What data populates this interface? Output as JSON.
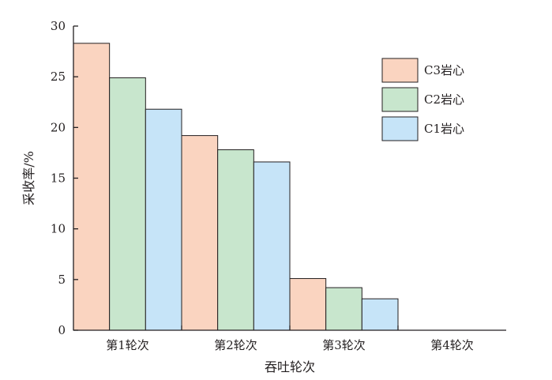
{
  "chart_data": {
    "type": "bar",
    "categories": [
      "第1轮次",
      "第2轮次",
      "第3轮次",
      "第4轮次"
    ],
    "series": [
      {
        "name": "C3岩心",
        "color": "#fad4c0",
        "values": [
          28.3,
          19.2,
          5.1,
          0
        ]
      },
      {
        "name": "C2岩心",
        "color": "#c8e6cd",
        "values": [
          24.9,
          17.8,
          4.2,
          0
        ]
      },
      {
        "name": "C1岩心",
        "color": "#c6e4f8",
        "values": [
          21.8,
          16.6,
          3.1,
          0
        ]
      }
    ],
    "xlabel": "吞吐轮次",
    "ylabel": "采收率/%",
    "ylim": [
      0,
      30
    ],
    "yticks": [
      0,
      5,
      10,
      15,
      20,
      25,
      30
    ],
    "grid": false,
    "legend_position": "top-right"
  }
}
